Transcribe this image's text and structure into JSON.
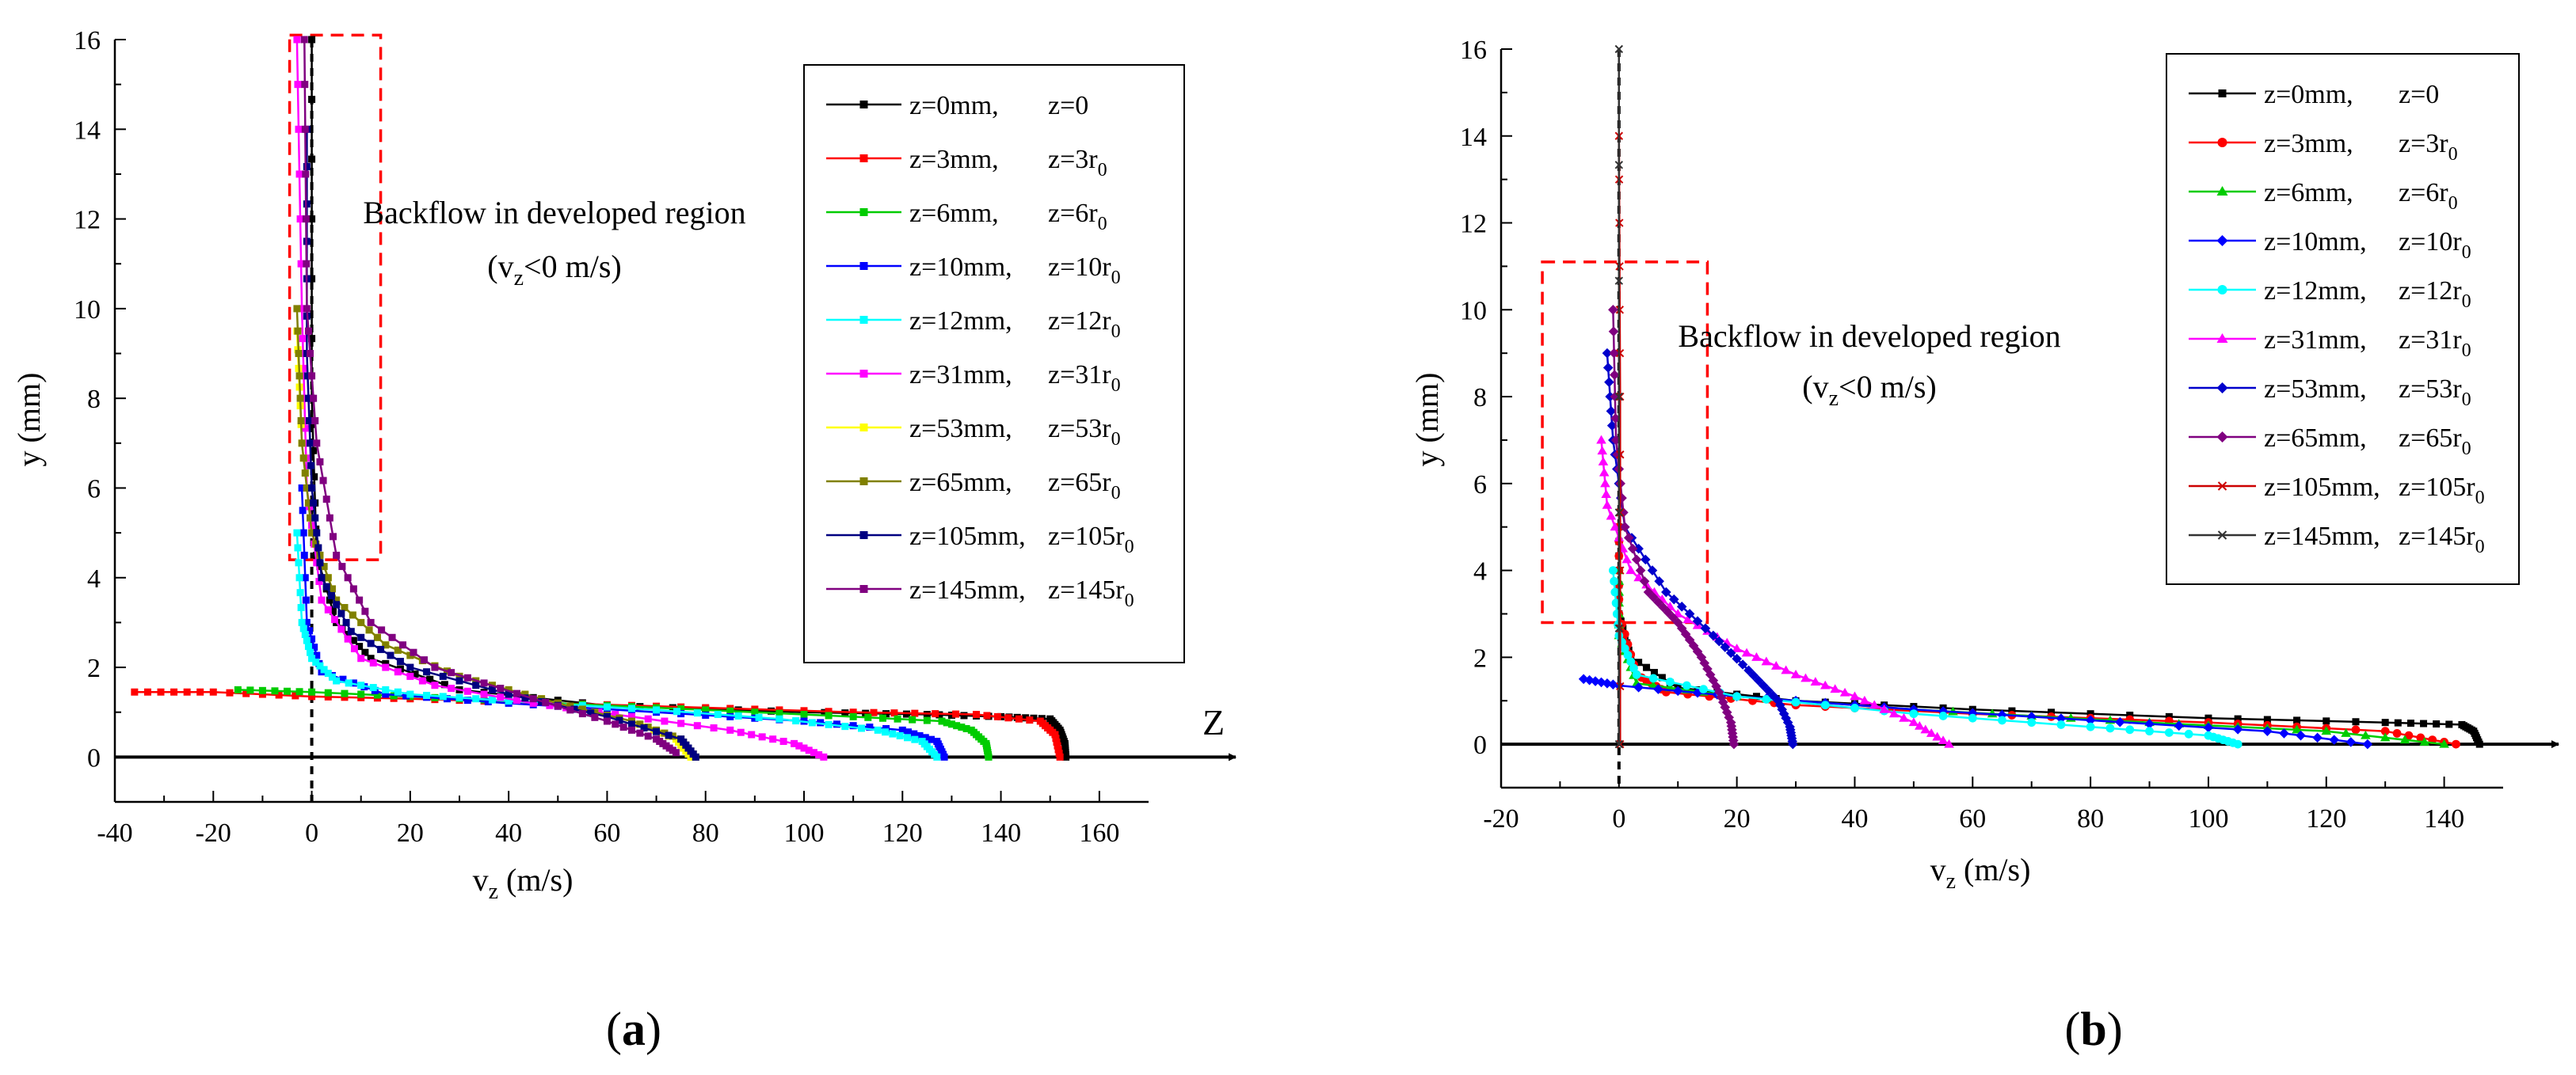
{
  "chart_data": [
    {
      "panel": "a",
      "type": "line",
      "panel_label": "a",
      "xlabel_main": "v",
      "xlabel_sub": "z",
      "xlabel_rest": " (m/s)",
      "ylabel": "y (mm)",
      "flow_axis_label": "Z",
      "xlim": [
        -40,
        170
      ],
      "ylim": [
        -1,
        16
      ],
      "x_ticks": [
        -40,
        -20,
        0,
        20,
        40,
        60,
        80,
        100,
        120,
        140,
        160
      ],
      "y_ticks": [
        0,
        2,
        4,
        6,
        8,
        10,
        12,
        14,
        16
      ],
      "annotation_line1": "Backflow in developed region",
      "annotation_line2_pre": "(v",
      "annotation_line2_sub": "z",
      "annotation_line2_post": "<0 m/s)",
      "dashed_box": {
        "x0": -4.5,
        "x1": 14,
        "y0": 4.4,
        "y1": 16.1
      },
      "legend_position": "top-right",
      "series": [
        {
          "name": "z=0mm,",
          "label2": "z=0",
          "sub": "",
          "color": "#000000",
          "marker": "square",
          "points": [
            [
              0,
              16
            ],
            [
              0,
              8
            ],
            [
              1,
              4.5
            ],
            [
              5,
              3
            ],
            [
              12,
              2.2
            ],
            [
              30,
              1.5
            ],
            [
              60,
              1.15
            ],
            [
              100,
              1.0
            ],
            [
              125,
              0.95
            ],
            [
              140,
              0.9
            ],
            [
              150,
              0.85
            ],
            [
              152,
              0.6
            ],
            [
              153,
              0.3
            ],
            [
              153.2,
              0
            ]
          ]
        },
        {
          "name": "z=3mm,",
          "label2": "z=",
          "sub": "3r0",
          "color": "#ff0000",
          "marker": "square",
          "points": [
            [
              -36,
              1.45
            ],
            [
              -20,
              1.45
            ],
            [
              0,
              1.35
            ],
            [
              20,
              1.3
            ],
            [
              50,
              1.2
            ],
            [
              80,
              1.1
            ],
            [
              110,
              1.0
            ],
            [
              135,
              0.95
            ],
            [
              148,
              0.8
            ],
            [
              151,
              0.5
            ],
            [
              152,
              0
            ]
          ]
        },
        {
          "name": "z=6mm,",
          "label2": "z=",
          "sub": "6r0",
          "color": "#00cc00",
          "marker": "square",
          "points": [
            [
              -15,
              1.5
            ],
            [
              0,
              1.45
            ],
            [
              20,
              1.35
            ],
            [
              50,
              1.2
            ],
            [
              80,
              1.05
            ],
            [
              110,
              0.9
            ],
            [
              128,
              0.8
            ],
            [
              134,
              0.6
            ],
            [
              137,
              0.3
            ],
            [
              137.5,
              0
            ]
          ]
        },
        {
          "name": "z=10mm,",
          "label2": "z=",
          "sub": "10r0",
          "color": "#0000ff",
          "marker": "square",
          "points": [
            [
              -2,
              6
            ],
            [
              -1,
              3
            ],
            [
              2,
              1.9
            ],
            [
              15,
              1.4
            ],
            [
              40,
              1.2
            ],
            [
              70,
              1.0
            ],
            [
              100,
              0.8
            ],
            [
              120,
              0.6
            ],
            [
              127,
              0.35
            ],
            [
              128.5,
              0
            ]
          ]
        },
        {
          "name": "z=12mm,",
          "label2": "z=",
          "sub": "12r0",
          "color": "#00ffff",
          "marker": "square",
          "points": [
            [
              -3,
              5
            ],
            [
              -2,
              3
            ],
            [
              0,
              2.2
            ],
            [
              5,
              1.7
            ],
            [
              20,
              1.4
            ],
            [
              40,
              1.25
            ],
            [
              70,
              1.05
            ],
            [
              95,
              0.85
            ],
            [
              115,
              0.6
            ],
            [
              124,
              0.35
            ],
            [
              127,
              0
            ]
          ]
        },
        {
          "name": "z=31mm,",
          "label2": "z=",
          "sub": "31r0",
          "color": "#ff00ff",
          "marker": "square",
          "points": [
            [
              -3,
              16
            ],
            [
              -2,
              10
            ],
            [
              -1,
              6
            ],
            [
              2,
              3.5
            ],
            [
              10,
              2.2
            ],
            [
              25,
              1.6
            ],
            [
              45,
              1.2
            ],
            [
              65,
              0.9
            ],
            [
              85,
              0.6
            ],
            [
              98,
              0.3
            ],
            [
              104,
              0
            ]
          ]
        },
        {
          "name": "z=53mm,",
          "label2": "z=",
          "sub": "53r0",
          "color": "#ffff00",
          "marker": "square",
          "points": [
            [
              -3,
              9.5
            ],
            [
              -2,
              7
            ],
            [
              0,
              5
            ],
            [
              5,
              3.5
            ],
            [
              15,
              2.5
            ],
            [
              30,
              1.8
            ],
            [
              50,
              1.2
            ],
            [
              65,
              0.8
            ],
            [
              74,
              0.4
            ],
            [
              77,
              0
            ]
          ]
        },
        {
          "name": "z=65mm,",
          "label2": "z=",
          "sub": "65r0",
          "color": "#808000",
          "marker": "square",
          "points": [
            [
              -3,
              10
            ],
            [
              -2,
              7
            ],
            [
              0,
              5
            ],
            [
              5,
              3.5
            ],
            [
              15,
              2.5
            ],
            [
              30,
              1.8
            ],
            [
              50,
              1.2
            ],
            [
              65,
              0.8
            ],
            [
              75,
              0.4
            ],
            [
              78,
              0
            ]
          ]
        },
        {
          "name": "z=105mm,",
          "label2": "z=",
          "sub": "105r0",
          "color": "#000080",
          "marker": "square",
          "points": [
            [
              -1,
              14
            ],
            [
              -1,
              9
            ],
            [
              0,
              6
            ],
            [
              2,
              4
            ],
            [
              8,
              2.8
            ],
            [
              20,
              2.0
            ],
            [
              40,
              1.4
            ],
            [
              60,
              0.9
            ],
            [
              75,
              0.4
            ],
            [
              78,
              0
            ]
          ]
        },
        {
          "name": "z=145mm,",
          "label2": "z=",
          "sub": "145r0",
          "color": "#800080",
          "marker": "square",
          "points": [
            [
              -1.5,
              16
            ],
            [
              -1,
              10
            ],
            [
              1,
              7
            ],
            [
              5,
              4.5
            ],
            [
              12,
              3
            ],
            [
              25,
              2
            ],
            [
              45,
              1.3
            ],
            [
              60,
              0.8
            ],
            [
              70,
              0.4
            ],
            [
              74,
              0.1
            ]
          ]
        }
      ]
    },
    {
      "panel": "b",
      "type": "line",
      "panel_label": "b",
      "xlabel_main": "v",
      "xlabel_sub": "z",
      "xlabel_rest": " (m/s)",
      "ylabel": "y (mm)",
      "xlim": [
        -20,
        150
      ],
      "ylim": [
        -1,
        16
      ],
      "x_ticks": [
        -20,
        0,
        20,
        40,
        60,
        80,
        100,
        120,
        140
      ],
      "y_ticks": [
        0,
        2,
        4,
        6,
        8,
        10,
        12,
        14,
        16
      ],
      "annotation_line1": "Backflow in developed region",
      "annotation_line2_pre": "(v",
      "annotation_line2_sub": "z",
      "annotation_line2_post": "<0 m/s)",
      "dashed_box": {
        "x0": -13,
        "x1": 15,
        "y0": 2.8,
        "y1": 11.1
      },
      "legend_position": "top-right",
      "series": [
        {
          "name": "z=0mm,",
          "label2": "z=0",
          "sub": "",
          "color": "#000000",
          "marker": "square",
          "points": [
            [
              0,
              5
            ],
            [
              0,
              3
            ],
            [
              2,
              2
            ],
            [
              10,
              1.3
            ],
            [
              30,
              1.0
            ],
            [
              60,
              0.8
            ],
            [
              100,
              0.6
            ],
            [
              130,
              0.5
            ],
            [
              143,
              0.45
            ],
            [
              145,
              0.3
            ],
            [
              146,
              0
            ]
          ]
        },
        {
          "name": "z=3mm,",
          "label2": "z=",
          "sub": "3r0",
          "color": "#ff0000",
          "marker": "circle",
          "points": [
            [
              0,
              5
            ],
            [
              0,
              3
            ],
            [
              3,
              1.6
            ],
            [
              8,
              1.2
            ],
            [
              30,
              0.9
            ],
            [
              60,
              0.7
            ],
            [
              100,
              0.5
            ],
            [
              130,
              0.3
            ],
            [
              142,
              0
            ]
          ]
        },
        {
          "name": "z=6mm,",
          "label2": "z=",
          "sub": "6r0",
          "color": "#00cc00",
          "marker": "triangle",
          "points": [
            [
              0,
              4
            ],
            [
              0,
              2.5
            ],
            [
              3,
              1.4
            ],
            [
              20,
              1.1
            ],
            [
              50,
              0.8
            ],
            [
              90,
              0.5
            ],
            [
              120,
              0.3
            ],
            [
              140,
              0
            ]
          ]
        },
        {
          "name": "z=10mm,",
          "label2": "z=",
          "sub": "10r0",
          "color": "#0000ff",
          "marker": "diamond",
          "points": [
            [
              -6,
              1.5
            ],
            [
              0,
              1.35
            ],
            [
              20,
              1.1
            ],
            [
              50,
              0.8
            ],
            [
              80,
              0.55
            ],
            [
              110,
              0.3
            ],
            [
              127,
              0
            ]
          ]
        },
        {
          "name": "z=12mm,",
          "label2": "z=",
          "sub": "12r0",
          "color": "#00ffff",
          "marker": "circle",
          "points": [
            [
              -1,
              4
            ],
            [
              0,
              2.5
            ],
            [
              3,
              1.6
            ],
            [
              20,
              1.1
            ],
            [
              50,
              0.7
            ],
            [
              80,
              0.4
            ],
            [
              100,
              0.2
            ],
            [
              105,
              0
            ]
          ]
        },
        {
          "name": "z=31mm,",
          "label2": "z=",
          "sub": "31r0",
          "color": "#ff00ff",
          "marker": "triangle",
          "points": [
            [
              -3,
              7
            ],
            [
              -2,
              5.5
            ],
            [
              2,
              4
            ],
            [
              10,
              3
            ],
            [
              20,
              2.2
            ],
            [
              30,
              1.6
            ],
            [
              40,
              1.1
            ],
            [
              50,
              0.5
            ],
            [
              56,
              0
            ]
          ]
        },
        {
          "name": "z=53mm,",
          "label2": "z=",
          "sub": "53r0",
          "color": "#0000cc",
          "marker": "diamond",
          "points": [
            [
              -2,
              9
            ],
            [
              -1,
              7
            ],
            [
              1,
              5
            ],
            [
              8,
              3.5
            ],
            [
              16,
              2.5
            ],
            [
              22,
              1.7
            ],
            [
              27,
              1.0
            ],
            [
              29,
              0.4
            ],
            [
              29.5,
              0
            ]
          ]
        },
        {
          "name": "z=65mm,",
          "label2": "z=",
          "sub": "65r0",
          "color": "#800080",
          "marker": "diamond",
          "points": [
            [
              -1,
              10
            ],
            [
              -0.5,
              7
            ],
            [
              1,
              5
            ],
            [
              5,
              3.5
            ],
            [
              10,
              2.8
            ],
            [
              14,
              2.0
            ],
            [
              17,
              1.2
            ],
            [
              19,
              0.5
            ],
            [
              19.5,
              0
            ]
          ]
        },
        {
          "name": "z=105mm,",
          "label2": "z=",
          "sub": "105r0",
          "color": "#cc0000",
          "marker": "cross",
          "points": [
            [
              0,
              14
            ],
            [
              0.2,
              8
            ],
            [
              0.2,
              0
            ]
          ]
        },
        {
          "name": "z=145mm,",
          "label2": "z=",
          "sub": "145r0",
          "color": "#333333",
          "marker": "cross",
          "points": [
            [
              0,
              16
            ],
            [
              0,
              0
            ]
          ]
        }
      ]
    }
  ]
}
